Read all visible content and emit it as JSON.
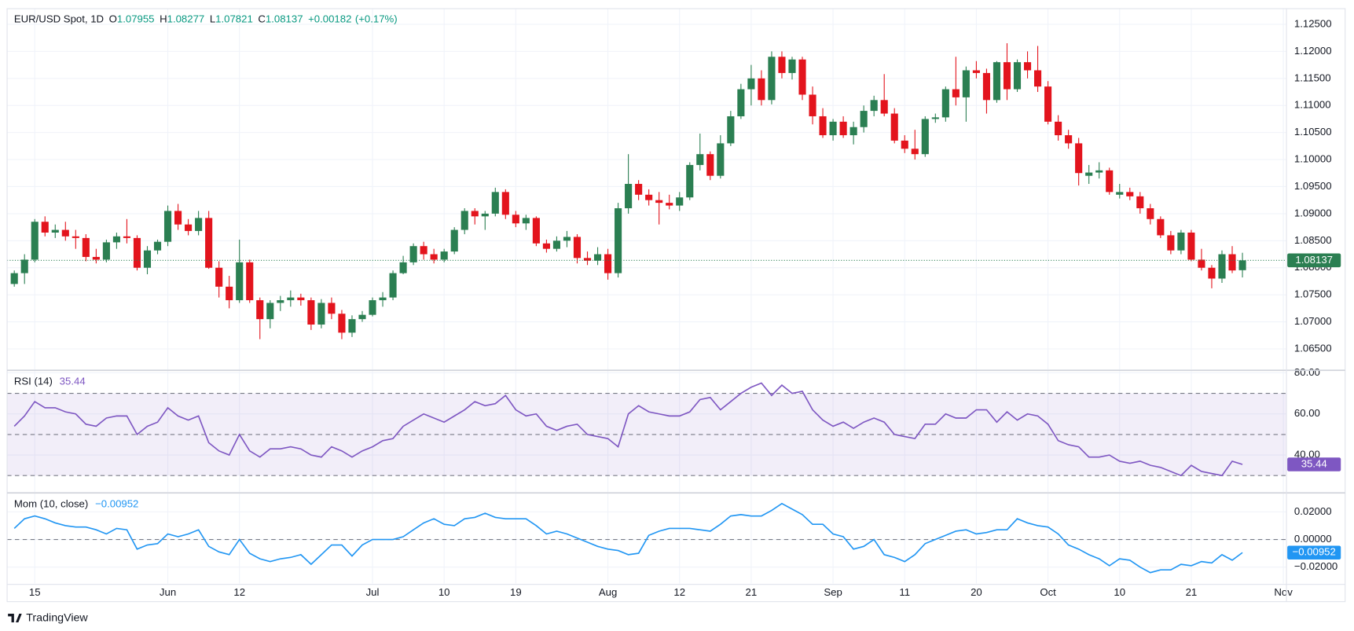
{
  "header": {
    "values": [
      {
        "name": "O",
        "value": 1.07955
      },
      {
        "name": "H",
        "value": 1.08277
      },
      {
        "name": "L",
        "value": 1.07821
      },
      {
        "name": "C",
        "value": 1.08137
      }
    ],
    "change": {
      "value": 0.00182,
      "label": "+0.00182"
    },
    "change_pct": {
      "value": 0.17,
      "label": "(+0.17%)"
    }
  },
  "branding": "TradingView",
  "chart_data": [
    {
      "type": "candlestick",
      "title": "EUR/USD Spot, 1D",
      "up_color": "#2b7f52",
      "down_color": "#e3141d",
      "grid": true,
      "xlim": [
        -0.7,
        124.3
      ],
      "xticks": [
        {
          "value": 2,
          "label": "15"
        },
        {
          "value": 15,
          "label": "Jun"
        },
        {
          "value": 22,
          "label": "12"
        },
        {
          "value": 35,
          "label": "Jul"
        },
        {
          "value": 42,
          "label": "10"
        },
        {
          "value": 49,
          "label": "19"
        },
        {
          "value": 58,
          "label": "Aug"
        },
        {
          "value": 65,
          "label": "12"
        },
        {
          "value": 72,
          "label": "21"
        },
        {
          "value": 80,
          "label": "Sep"
        },
        {
          "value": 87,
          "label": "11"
        },
        {
          "value": 94,
          "label": "20"
        },
        {
          "value": 101,
          "label": "Oct"
        },
        {
          "value": 108,
          "label": "10"
        },
        {
          "value": 115,
          "label": "21"
        },
        {
          "value": 124,
          "label": "Nov"
        }
      ],
      "ylim": [
        1.0612,
        1.1279
      ],
      "yticks": [
        {
          "value": 1.065,
          "label": "1.06500"
        },
        {
          "value": 1.07,
          "label": "1.07000"
        },
        {
          "value": 1.075,
          "label": "1.07500"
        },
        {
          "value": 1.08,
          "label": "1.08000"
        },
        {
          "value": 1.085,
          "label": "1.08500"
        },
        {
          "value": 1.09,
          "label": "1.09000"
        },
        {
          "value": 1.095,
          "label": "1.09500"
        },
        {
          "value": 1.1,
          "label": "1.10000"
        },
        {
          "value": 1.105,
          "label": "1.10500"
        },
        {
          "value": 1.11,
          "label": "1.11000"
        },
        {
          "value": 1.115,
          "label": "1.11500"
        },
        {
          "value": 1.12,
          "label": "1.12000"
        },
        {
          "value": 1.125,
          "label": "1.12500"
        }
      ],
      "ohlc": [
        [
          1.077,
          1.0795,
          1.0765,
          1.079
        ],
        [
          1.079,
          1.0825,
          1.077,
          1.0815
        ],
        [
          1.0815,
          1.089,
          1.081,
          1.0885
        ],
        [
          1.0885,
          1.0895,
          1.0858,
          1.0865
        ],
        [
          1.0865,
          1.088,
          1.0855,
          1.087
        ],
        [
          1.087,
          1.0885,
          1.085,
          1.0858
        ],
        [
          1.0858,
          1.087,
          1.0835,
          1.0855
        ],
        [
          1.0855,
          1.0862,
          1.0812,
          1.082
        ],
        [
          1.082,
          1.0835,
          1.0808,
          1.0815
        ],
        [
          1.0815,
          1.0852,
          1.081,
          1.0847
        ],
        [
          1.0847,
          1.0865,
          1.0835,
          1.0858
        ],
        [
          1.0858,
          1.089,
          1.0845,
          1.0855
        ],
        [
          1.0855,
          1.086,
          1.0795,
          1.08
        ],
        [
          1.08,
          1.084,
          1.0788,
          1.0832
        ],
        [
          1.0832,
          1.0852,
          1.0825,
          1.0848
        ],
        [
          1.0848,
          1.0915,
          1.084,
          1.0905
        ],
        [
          1.0905,
          1.0918,
          1.087,
          1.088
        ],
        [
          1.088,
          1.089,
          1.086,
          1.0868
        ],
        [
          1.0868,
          1.0905,
          1.086,
          1.0892
        ],
        [
          1.0892,
          1.0905,
          1.0798,
          1.08
        ],
        [
          1.08,
          1.0812,
          1.0745,
          1.0765
        ],
        [
          1.0765,
          1.0785,
          1.0725,
          1.074
        ],
        [
          1.074,
          1.0852,
          1.0735,
          1.081
        ],
        [
          1.081,
          1.0815,
          1.0735,
          1.074
        ],
        [
          1.074,
          1.0745,
          1.0668,
          1.0705
        ],
        [
          1.0705,
          1.074,
          1.0688,
          1.0735
        ],
        [
          1.0735,
          1.0748,
          1.072,
          1.074
        ],
        [
          1.074,
          1.0758,
          1.0728,
          1.0745
        ],
        [
          1.0745,
          1.0752,
          1.073,
          1.074
        ],
        [
          1.074,
          1.0745,
          1.0685,
          1.0695
        ],
        [
          1.0695,
          1.0742,
          1.0688,
          1.0735
        ],
        [
          1.0735,
          1.0745,
          1.0705,
          1.0715
        ],
        [
          1.0715,
          1.0722,
          1.0668,
          1.068
        ],
        [
          1.068,
          1.0712,
          1.0672,
          1.0705
        ],
        [
          1.0705,
          1.072,
          1.07,
          1.0713
        ],
        [
          1.0713,
          1.0745,
          1.071,
          1.074
        ],
        [
          1.074,
          1.0755,
          1.0728,
          1.0745
        ],
        [
          1.0745,
          1.0795,
          1.074,
          1.079
        ],
        [
          1.079,
          1.0822,
          1.0788,
          1.081
        ],
        [
          1.081,
          1.0845,
          1.0805,
          1.084
        ],
        [
          1.084,
          1.0848,
          1.0815,
          1.0825
        ],
        [
          1.0825,
          1.0835,
          1.0808,
          1.0815
        ],
        [
          1.0815,
          1.0835,
          1.081,
          1.083
        ],
        [
          1.083,
          1.0875,
          1.0825,
          1.087
        ],
        [
          1.087,
          1.091,
          1.0862,
          1.0905
        ],
        [
          1.0905,
          1.091,
          1.088,
          1.0895
        ],
        [
          1.0895,
          1.0905,
          1.087,
          1.09
        ],
        [
          1.09,
          1.0948,
          1.0895,
          1.094
        ],
        [
          1.094,
          1.0945,
          1.089,
          1.0898
        ],
        [
          1.0898,
          1.0905,
          1.0875,
          1.0882
        ],
        [
          1.0882,
          1.0898,
          1.087,
          1.0892
        ],
        [
          1.0892,
          1.0895,
          1.084,
          1.0845
        ],
        [
          1.0845,
          1.0852,
          1.0828,
          1.0835
        ],
        [
          1.0835,
          1.0858,
          1.083,
          1.085
        ],
        [
          1.085,
          1.0868,
          1.0838,
          1.0857
        ],
        [
          1.0857,
          1.0862,
          1.0808,
          1.0818
        ],
        [
          1.0818,
          1.083,
          1.0805,
          1.0813
        ],
        [
          1.0813,
          1.0838,
          1.0805,
          1.0825
        ],
        [
          1.0825,
          1.0835,
          1.0778,
          1.079
        ],
        [
          1.079,
          1.092,
          1.0782,
          1.091
        ],
        [
          1.091,
          1.101,
          1.09,
          1.0955
        ],
        [
          1.0955,
          1.0962,
          1.0925,
          1.0935
        ],
        [
          1.0935,
          1.0945,
          1.0915,
          1.0925
        ],
        [
          1.0925,
          1.094,
          1.088,
          1.092
        ],
        [
          1.092,
          1.0935,
          1.0908,
          1.0915
        ],
        [
          1.0915,
          1.094,
          1.0905,
          1.093
        ],
        [
          1.093,
          1.0995,
          1.0925,
          1.099
        ],
        [
          1.099,
          1.1048,
          1.098,
          1.101
        ],
        [
          1.101,
          1.1015,
          1.0962,
          1.097
        ],
        [
          1.097,
          1.1045,
          1.0965,
          1.103
        ],
        [
          1.103,
          1.109,
          1.1025,
          1.108
        ],
        [
          1.108,
          1.114,
          1.1075,
          1.113
        ],
        [
          1.113,
          1.1175,
          1.11,
          1.115
        ],
        [
          1.115,
          1.1165,
          1.11,
          1.111
        ],
        [
          1.111,
          1.12,
          1.1102,
          1.119
        ],
        [
          1.119,
          1.12,
          1.115,
          1.116
        ],
        [
          1.116,
          1.119,
          1.1148,
          1.1185
        ],
        [
          1.1185,
          1.119,
          1.111,
          1.112
        ],
        [
          1.112,
          1.1135,
          1.1065,
          1.108
        ],
        [
          1.108,
          1.1095,
          1.104,
          1.1045
        ],
        [
          1.1045,
          1.1075,
          1.1035,
          1.107
        ],
        [
          1.107,
          1.108,
          1.104,
          1.1045
        ],
        [
          1.1045,
          1.107,
          1.1028,
          1.106
        ],
        [
          1.106,
          1.11,
          1.105,
          1.109
        ],
        [
          1.109,
          1.1118,
          1.108,
          1.111
        ],
        [
          1.111,
          1.1158,
          1.108,
          1.1085
        ],
        [
          1.1085,
          1.1095,
          1.103,
          1.1035
        ],
        [
          1.1035,
          1.1045,
          1.1012,
          1.102
        ],
        [
          1.102,
          1.1055,
          1.1,
          1.101
        ],
        [
          1.101,
          1.108,
          1.1005,
          1.1075
        ],
        [
          1.1075,
          1.1085,
          1.1068,
          1.1078
        ],
        [
          1.1078,
          1.1135,
          1.107,
          1.113
        ],
        [
          1.113,
          1.119,
          1.11,
          1.1115
        ],
        [
          1.1115,
          1.1172,
          1.107,
          1.1165
        ],
        [
          1.1165,
          1.1182,
          1.115,
          1.116
        ],
        [
          1.116,
          1.1168,
          1.1085,
          1.111
        ],
        [
          1.111,
          1.1182,
          1.1105,
          1.118
        ],
        [
          1.118,
          1.1215,
          1.111,
          1.113
        ],
        [
          1.113,
          1.1185,
          1.1125,
          1.118
        ],
        [
          1.118,
          1.12,
          1.115,
          1.1165
        ],
        [
          1.1165,
          1.121,
          1.1125,
          1.1135
        ],
        [
          1.1135,
          1.1145,
          1.1065,
          1.107
        ],
        [
          1.107,
          1.1082,
          1.1035,
          1.1045
        ],
        [
          1.1045,
          1.1055,
          1.102,
          1.103
        ],
        [
          1.103,
          1.104,
          1.0952,
          1.0975
        ],
        [
          1.097,
          1.099,
          1.0955,
          1.0976
        ],
        [
          1.0976,
          1.0995,
          1.0965,
          1.098
        ],
        [
          1.098,
          1.0985,
          1.0935,
          1.094
        ],
        [
          1.0935,
          1.0955,
          1.0928,
          1.094
        ],
        [
          1.094,
          1.0948,
          1.0925,
          1.0932
        ],
        [
          1.0932,
          1.094,
          1.09,
          1.091
        ],
        [
          1.091,
          1.0918,
          1.088,
          1.089
        ],
        [
          1.089,
          1.0895,
          1.0855,
          1.086
        ],
        [
          1.086,
          1.0868,
          1.0825,
          1.0832
        ],
        [
          1.0832,
          1.087,
          1.0825,
          1.0865
        ],
        [
          1.0865,
          1.087,
          1.0812,
          1.0815
        ],
        [
          1.0815,
          1.0835,
          1.0795,
          1.08
        ],
        [
          1.08,
          1.0805,
          1.0762,
          1.078
        ],
        [
          1.078,
          1.0832,
          1.0772,
          1.0825
        ],
        [
          1.0825,
          1.084,
          1.079,
          1.0795
        ],
        [
          1.07955,
          1.08277,
          1.07821,
          1.08137
        ]
      ]
    },
    {
      "type": "line",
      "title": "RSI (14)",
      "color": "#7e57c2",
      "grid": true,
      "ylim": [
        22,
        80.8
      ],
      "yticks": [
        {
          "value": 80,
          "label": "80.00"
        },
        {
          "value": 60,
          "label": "60.00"
        },
        {
          "value": 40,
          "label": "40.00"
        }
      ],
      "levels": [
        70,
        50,
        30
      ],
      "values": [
        54,
        59,
        66,
        63,
        63,
        61,
        60,
        55,
        54,
        58,
        59,
        59,
        50,
        54,
        56,
        63,
        59,
        57,
        59,
        46,
        42,
        40,
        50,
        42,
        39,
        43,
        43,
        44,
        43,
        40,
        39,
        44,
        42,
        39,
        42,
        44,
        47,
        48,
        54,
        57,
        60,
        58,
        56,
        59,
        62,
        66,
        64,
        65,
        69,
        62,
        59,
        60,
        54,
        52,
        54,
        55,
        50,
        49,
        48,
        44,
        60,
        64,
        61,
        60,
        59,
        59,
        61,
        67,
        68,
        62,
        66,
        70,
        73,
        75,
        69,
        74,
        70,
        71,
        62,
        57,
        54,
        56,
        53,
        56,
        58,
        56,
        50,
        49,
        48,
        55,
        55,
        60,
        58,
        58,
        62,
        62,
        56,
        61,
        57,
        60,
        59,
        55,
        47,
        45,
        44,
        39,
        39,
        40,
        37,
        36,
        37,
        35,
        34,
        32,
        30,
        35,
        32,
        31,
        30,
        37,
        35.44
      ]
    },
    {
      "type": "line",
      "title": "Mom (10, close)",
      "color": "#2196f3",
      "grid": true,
      "ylim": [
        -0.0319,
        0.0331
      ],
      "yticks": [
        {
          "value": 0.02,
          "label": "0.02000"
        },
        {
          "value": 0,
          "label": "0.00000"
        },
        {
          "value": -0.02,
          "label": "−0.02000"
        }
      ],
      "levels": [
        0
      ],
      "last_label": {
        "value": -0.00952,
        "label": "−0.00952"
      },
      "values": [
        0.008,
        0.015,
        0.017,
        0.015,
        0.012,
        0.01,
        0.009,
        0.009,
        0.007,
        0.004,
        0.008,
        0.007,
        -0.007,
        -0.004,
        -0.003,
        0.004,
        0.002,
        0.004,
        0.007,
        -0.005,
        -0.009,
        -0.011,
        0,
        -0.01,
        -0.014,
        -0.016,
        -0.014,
        -0.013,
        -0.011,
        -0.018,
        -0.011,
        -0.004,
        -0.004,
        -0.012,
        -0.004,
        0,
        0,
        0,
        0.002,
        0.007,
        0.012,
        0.015,
        0.011,
        0.01,
        0.015,
        0.016,
        0.019,
        0.016,
        0.015,
        0.015,
        0.015,
        0.01,
        0.004,
        0.006,
        0.004,
        0.001,
        -0.002,
        -0.005,
        -0.007,
        -0.008,
        -0.011,
        -0.01,
        0.003,
        0.006,
        0.008,
        0.008,
        0.008,
        0.007,
        0.006,
        0.011,
        0.017,
        0.018,
        0.017,
        0.017,
        0.021,
        0.026,
        0.022,
        0.018,
        0.011,
        0.011,
        0.004,
        0.002,
        -0.007,
        -0.005,
        0,
        -0.011,
        -0.013,
        -0.016,
        -0.011,
        -0.003,
        0,
        0.003,
        0.006,
        0.007,
        0.004,
        0.005,
        0.007,
        0.007,
        0.015,
        0.012,
        0.01,
        0.009,
        0.004,
        -0.004,
        -0.007,
        -0.011,
        -0.014,
        -0.019,
        -0.014,
        -0.015,
        -0.02,
        -0.024,
        -0.022,
        -0.022,
        -0.018,
        -0.019,
        -0.016,
        -0.017,
        -0.011,
        -0.015,
        -0.00952
      ]
    }
  ]
}
